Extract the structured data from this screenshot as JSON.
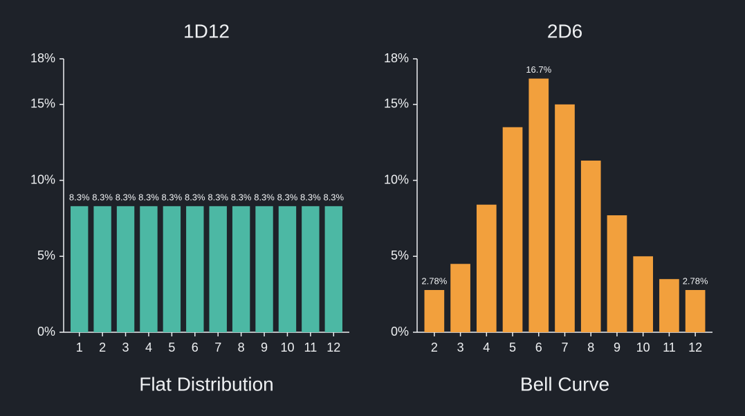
{
  "chart_data": [
    {
      "type": "bar",
      "title": "1D12",
      "xlabel": "Flat Distribution",
      "categories": [
        "1",
        "2",
        "3",
        "4",
        "5",
        "6",
        "7",
        "8",
        "9",
        "10",
        "11",
        "12"
      ],
      "values": [
        8.3,
        8.3,
        8.3,
        8.3,
        8.3,
        8.3,
        8.3,
        8.3,
        8.3,
        8.3,
        8.3,
        8.3
      ],
      "value_labels": [
        "8.3%",
        "8.3%",
        "8.3%",
        "8.3%",
        "8.3%",
        "8.3%",
        "8.3%",
        "8.3%",
        "8.3%",
        "8.3%",
        "8.3%",
        "8.3%"
      ],
      "color": "#4cb8a4",
      "ylim": [
        0,
        18
      ],
      "yticks": [
        {
          "value": 0,
          "label": "0%"
        },
        {
          "value": 5,
          "label": "5%"
        },
        {
          "value": 10,
          "label": "10%"
        },
        {
          "value": 15,
          "label": "15%"
        },
        {
          "value": 18,
          "label": "18%"
        }
      ]
    },
    {
      "type": "bar",
      "title": "2D6",
      "xlabel": "Bell Curve",
      "categories": [
        "2",
        "3",
        "4",
        "5",
        "6",
        "7",
        "8",
        "9",
        "10",
        "11",
        "12"
      ],
      "values": [
        2.78,
        4.5,
        8.4,
        13.5,
        16.7,
        15.0,
        11.3,
        7.7,
        5.0,
        3.5,
        2.78
      ],
      "value_labels": [
        "2.78%",
        null,
        null,
        null,
        "16.7%",
        null,
        null,
        null,
        null,
        null,
        "2.78%"
      ],
      "color": "#f2a03d",
      "ylim": [
        0,
        18
      ],
      "yticks": [
        {
          "value": 0,
          "label": "0%"
        },
        {
          "value": 5,
          "label": "5%"
        },
        {
          "value": 10,
          "label": "10%"
        },
        {
          "value": 15,
          "label": "15%"
        },
        {
          "value": 18,
          "label": "18%"
        }
      ]
    }
  ]
}
